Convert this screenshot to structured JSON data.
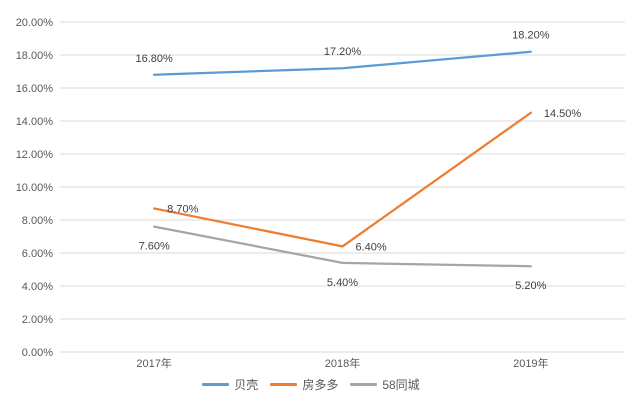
{
  "chart_data": {
    "type": "line",
    "categories": [
      "2017年",
      "2018年",
      "2019年"
    ],
    "series": [
      {
        "name": "贝壳",
        "color": "#5B9BD5",
        "values": [
          16.8,
          17.2,
          18.2
        ],
        "labels": [
          "16.80%",
          "17.20%",
          "18.20%"
        ],
        "label_positions": [
          "above",
          "above",
          "above"
        ]
      },
      {
        "name": "房多多",
        "color": "#ED7D31",
        "values": [
          8.7,
          6.4,
          14.5
        ],
        "labels": [
          "8.70%",
          "6.40%",
          "14.50%"
        ],
        "label_positions": [
          "right",
          "right",
          "right"
        ]
      },
      {
        "name": "58同城",
        "color": "#A5A5A5",
        "values": [
          7.6,
          5.4,
          5.2
        ],
        "labels": [
          "7.60%",
          "5.40%",
          "5.20%"
        ],
        "label_positions": [
          "below",
          "below",
          "below"
        ]
      }
    ],
    "title": "",
    "xlabel": "",
    "ylabel": "",
    "ylim": [
      0,
      20
    ],
    "ytick_step": 2,
    "ytick_labels": [
      "0.00%",
      "2.00%",
      "4.00%",
      "6.00%",
      "8.00%",
      "10.00%",
      "12.00%",
      "14.00%",
      "16.00%",
      "18.00%",
      "20.00%"
    ],
    "grid": true,
    "gridline_color": "#D9D9D9",
    "axis_text_color": "#595959",
    "data_label_color": "#404040",
    "legend_position": "bottom"
  }
}
